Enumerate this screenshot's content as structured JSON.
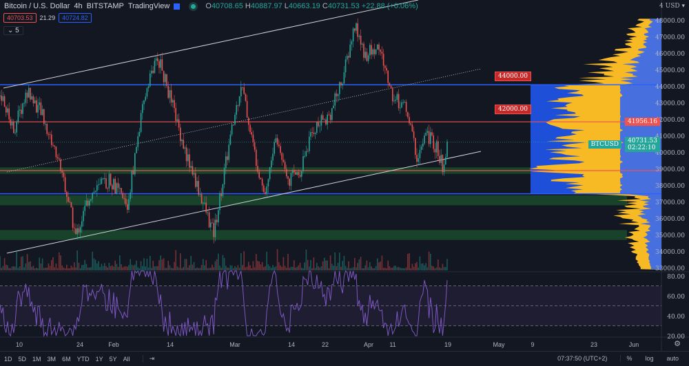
{
  "header": {
    "symbol": "Bitcoin / U.S. Dollar",
    "interval": "4h",
    "exchange": "BITSTAMP",
    "source": "TradingView",
    "ohlc": {
      "o_label": "O",
      "o": "40708.65",
      "h_label": "H",
      "h": "40887.97",
      "l_label": "L",
      "l": "40663.19",
      "c_label": "C",
      "c": "40731.53",
      "change": "+22.88 (+0.06%)"
    },
    "bid": "40703.53",
    "spread": "21.29",
    "ask": "40724.82",
    "indicators_toggle": "5"
  },
  "price_axis": {
    "currency": "USD",
    "labels": [
      "48000.00",
      "47000.00",
      "46000.00",
      "45000.00",
      "44000.00",
      "43000.00",
      "42000.00",
      "41000.00",
      "40000.00",
      "39000.00",
      "38000.00",
      "37000.00",
      "36000.00",
      "35000.00",
      "34000.00",
      "33000.00"
    ],
    "last_price": "40731.53",
    "countdown": "02:22:10",
    "symbol_tag": "BTCUSD",
    "red_line_price": "41956.16"
  },
  "rsi_axis": {
    "labels": [
      "80.00",
      "60.00",
      "40.00",
      "20.00"
    ]
  },
  "annotations": [
    {
      "text": "44000.00",
      "price": 44000
    },
    {
      "text": "42000.00",
      "price": 42000
    }
  ],
  "levels": {
    "blue": [
      44200,
      37600
    ],
    "red": [
      41956,
      39000
    ],
    "zones": [
      [
        38800,
        39200
      ],
      [
        36900,
        37500
      ],
      [
        34800,
        35400
      ]
    ]
  },
  "time_axis": [
    "10",
    "24",
    "Feb",
    "14",
    "Mar",
    "14",
    "22",
    "Apr",
    "11",
    "19",
    "May",
    "9",
    "23",
    "Jun"
  ],
  "toolbar": {
    "ranges": [
      "1D",
      "5D",
      "1M",
      "3M",
      "6M",
      "YTD",
      "1Y",
      "5Y",
      "All"
    ],
    "clock": "07:37:50 (UTC+2)",
    "pct": "%",
    "log": "log",
    "auto": "auto"
  },
  "colors": {
    "up": "#26a69a",
    "down": "#ef5350",
    "profile": "#f7b924",
    "value_area": "#1e4fd8",
    "bg": "#131722"
  },
  "price_path": [
    [
      0,
      43500
    ],
    [
      20,
      41500
    ],
    [
      40,
      43800
    ],
    [
      60,
      42500
    ],
    [
      90,
      39000
    ],
    [
      110,
      35000
    ],
    [
      130,
      37500
    ],
    [
      160,
      38500
    ],
    [
      185,
      36800
    ],
    [
      200,
      41000
    ],
    [
      215,
      44500
    ],
    [
      230,
      45800
    ],
    [
      250,
      43000
    ],
    [
      270,
      40000
    ],
    [
      295,
      37000
    ],
    [
      310,
      35200
    ],
    [
      330,
      40000
    ],
    [
      350,
      44300
    ],
    [
      370,
      40000
    ],
    [
      385,
      37600
    ],
    [
      400,
      41000
    ],
    [
      420,
      38500
    ],
    [
      435,
      39000
    ],
    [
      455,
      41500
    ],
    [
      480,
      42500
    ],
    [
      500,
      45000
    ],
    [
      515,
      47800
    ],
    [
      530,
      46000
    ],
    [
      550,
      46500
    ],
    [
      570,
      43500
    ],
    [
      590,
      42800
    ],
    [
      605,
      39800
    ],
    [
      620,
      41200
    ],
    [
      635,
      40300
    ],
    [
      645,
      38900
    ],
    [
      650,
      40700
    ]
  ]
}
